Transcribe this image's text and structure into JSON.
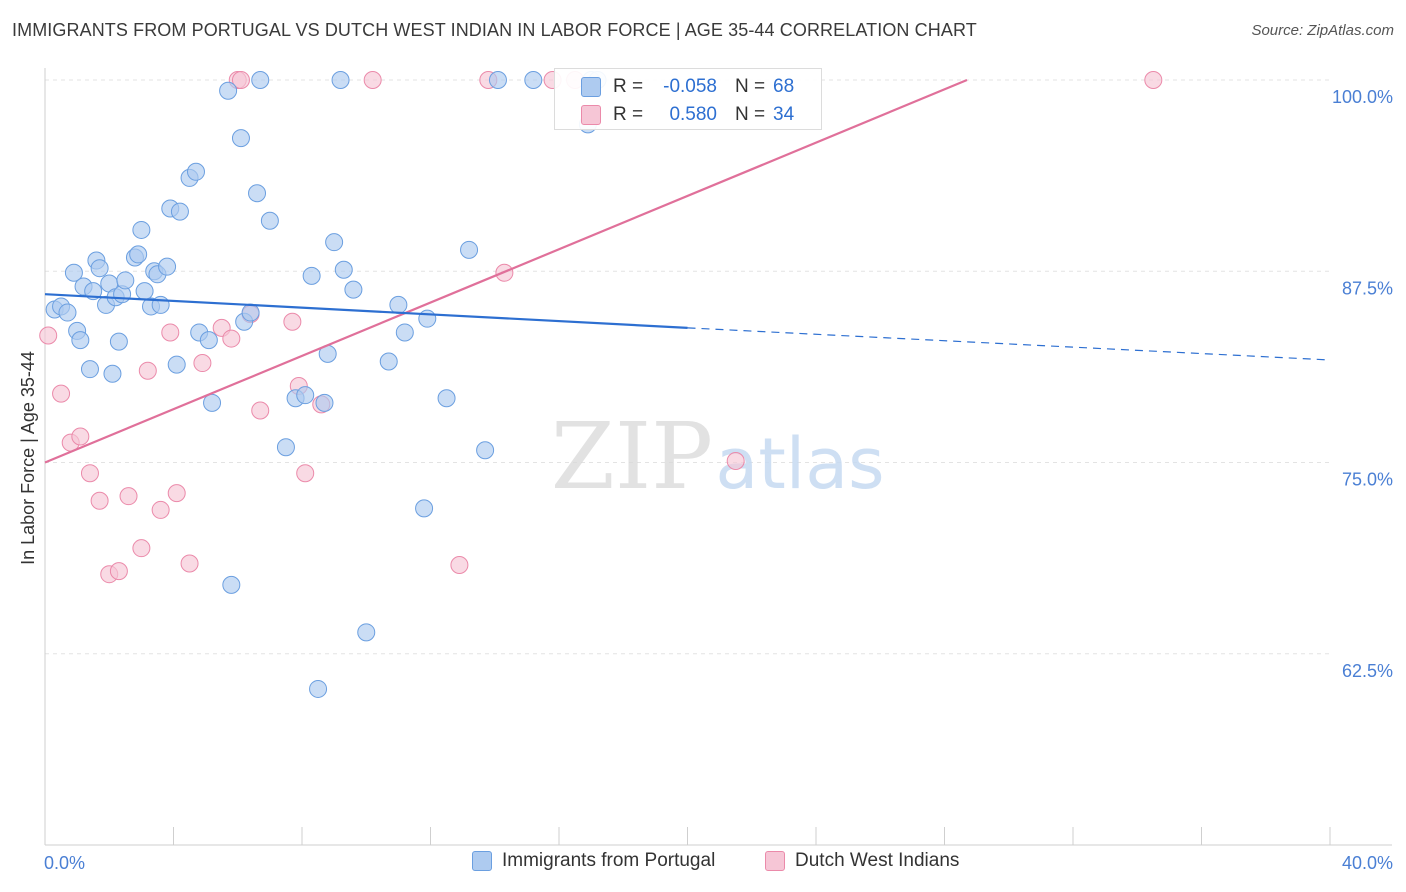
{
  "title": "IMMIGRANTS FROM PORTUGAL VS DUTCH WEST INDIAN IN LABOR FORCE | AGE 35-44 CORRELATION CHART",
  "source": "Source: ZipAtlas.com",
  "watermark": {
    "part1": "ZIP",
    "part2": "atlas"
  },
  "colors": {
    "blue_fill": "#aecbf0",
    "blue_stroke": "#6b9fe0",
    "blue_line": "#2d6fd1",
    "pink_fill": "#f6c6d6",
    "pink_stroke": "#eb8aaa",
    "pink_line": "#e0709a",
    "tick_text": "#4a7fd4",
    "grid": "#e3e3e3"
  },
  "stats": {
    "r_label": "R =",
    "n_label": "N =",
    "rows": [
      {
        "r": "-0.058",
        "n": "68"
      },
      {
        "r": "0.580",
        "n": "34"
      }
    ]
  },
  "chart_data": {
    "type": "scatter",
    "title": "IMMIGRANTS FROM PORTUGAL VS DUTCH WEST INDIAN IN LABOR FORCE | AGE 35-44 CORRELATION CHART",
    "xlabel": "",
    "ylabel": "In Labor Force | Age 35-44",
    "xlim": [
      0,
      40
    ],
    "ylim": [
      50,
      100
    ],
    "x_tick_labels": [
      "0.0%",
      "40.0%"
    ],
    "y_ticks": [
      62.5,
      75.0,
      87.5,
      100.0
    ],
    "y_tick_labels": [
      "62.5%",
      "75.0%",
      "87.5%",
      "100.0%"
    ],
    "grid": true,
    "legend_placement": "bottom-center",
    "series": [
      {
        "name": "Immigrants from Portugal",
        "color": "#aecbf0",
        "points": [
          [
            0.3,
            85.0
          ],
          [
            0.5,
            85.2
          ],
          [
            0.7,
            84.8
          ],
          [
            0.9,
            87.4
          ],
          [
            1.0,
            83.6
          ],
          [
            1.1,
            83.0
          ],
          [
            1.2,
            86.5
          ],
          [
            1.4,
            81.1
          ],
          [
            1.5,
            86.2
          ],
          [
            1.6,
            88.2
          ],
          [
            1.7,
            87.7
          ],
          [
            1.9,
            85.3
          ],
          [
            2.0,
            86.7
          ],
          [
            2.1,
            80.8
          ],
          [
            2.2,
            85.8
          ],
          [
            2.3,
            82.9
          ],
          [
            2.4,
            86.0
          ],
          [
            2.5,
            86.9
          ],
          [
            2.8,
            88.4
          ],
          [
            2.9,
            88.6
          ],
          [
            3.0,
            90.2
          ],
          [
            3.1,
            86.2
          ],
          [
            3.3,
            85.2
          ],
          [
            3.4,
            87.5
          ],
          [
            3.5,
            87.3
          ],
          [
            3.6,
            85.3
          ],
          [
            3.8,
            87.8
          ],
          [
            3.9,
            91.6
          ],
          [
            4.1,
            81.4
          ],
          [
            4.2,
            91.4
          ],
          [
            4.5,
            93.6
          ],
          [
            4.7,
            94.0
          ],
          [
            4.8,
            83.5
          ],
          [
            5.1,
            83.0
          ],
          [
            5.2,
            78.9
          ],
          [
            5.7,
            99.3
          ],
          [
            5.8,
            67.0
          ],
          [
            6.1,
            96.2
          ],
          [
            6.2,
            84.2
          ],
          [
            6.4,
            84.8
          ],
          [
            6.6,
            92.6
          ],
          [
            6.7,
            100.0
          ],
          [
            7.0,
            90.8
          ],
          [
            7.5,
            76.0
          ],
          [
            7.8,
            79.2
          ],
          [
            8.1,
            79.4
          ],
          [
            8.3,
            87.2
          ],
          [
            8.5,
            60.2
          ],
          [
            8.7,
            78.9
          ],
          [
            8.8,
            82.1
          ],
          [
            9.0,
            89.4
          ],
          [
            9.2,
            100.0
          ],
          [
            9.3,
            87.6
          ],
          [
            9.6,
            86.3
          ],
          [
            10.0,
            63.9
          ],
          [
            10.7,
            81.6
          ],
          [
            11.0,
            85.3
          ],
          [
            11.2,
            83.5
          ],
          [
            11.8,
            72.0
          ],
          [
            11.9,
            84.4
          ],
          [
            12.5,
            79.2
          ],
          [
            13.2,
            88.9
          ],
          [
            13.7,
            75.8
          ],
          [
            14.1,
            100.0
          ],
          [
            15.2,
            100.0
          ],
          [
            16.9,
            97.1
          ],
          [
            17.0,
            100.0
          ],
          [
            17.2,
            100.0
          ]
        ]
      },
      {
        "name": "Dutch West Indians",
        "color": "#f6c6d6",
        "points": [
          [
            0.1,
            83.3
          ],
          [
            0.5,
            79.5
          ],
          [
            0.8,
            76.3
          ],
          [
            1.1,
            76.7
          ],
          [
            1.4,
            74.3
          ],
          [
            1.7,
            72.5
          ],
          [
            2.0,
            67.7
          ],
          [
            2.3,
            67.9
          ],
          [
            2.6,
            72.8
          ],
          [
            3.0,
            69.4
          ],
          [
            3.2,
            81.0
          ],
          [
            3.6,
            71.9
          ],
          [
            3.9,
            83.5
          ],
          [
            4.1,
            73.0
          ],
          [
            4.5,
            68.4
          ],
          [
            4.9,
            81.5
          ],
          [
            5.5,
            83.8
          ],
          [
            5.8,
            83.1
          ],
          [
            6.0,
            100.0
          ],
          [
            6.1,
            100.0
          ],
          [
            6.4,
            84.7
          ],
          [
            6.7,
            78.4
          ],
          [
            7.7,
            84.2
          ],
          [
            7.9,
            80.0
          ],
          [
            8.1,
            74.3
          ],
          [
            8.6,
            78.8
          ],
          [
            10.2,
            100.0
          ],
          [
            12.9,
            68.3
          ],
          [
            13.8,
            100.0
          ],
          [
            14.3,
            87.4
          ],
          [
            15.8,
            100.0
          ],
          [
            16.5,
            100.0
          ],
          [
            21.5,
            75.1
          ],
          [
            34.5,
            100.0
          ]
        ]
      }
    ],
    "trend_lines": [
      {
        "series": "Immigrants from Portugal",
        "solid": [
          [
            0,
            86.0
          ],
          [
            20,
            83.8
          ]
        ],
        "dashed": [
          [
            20,
            83.8
          ],
          [
            40,
            81.7
          ]
        ]
      },
      {
        "series": "Dutch West Indians",
        "solid": [
          [
            0,
            75.0
          ],
          [
            28.7,
            100.0
          ]
        ]
      }
    ]
  }
}
